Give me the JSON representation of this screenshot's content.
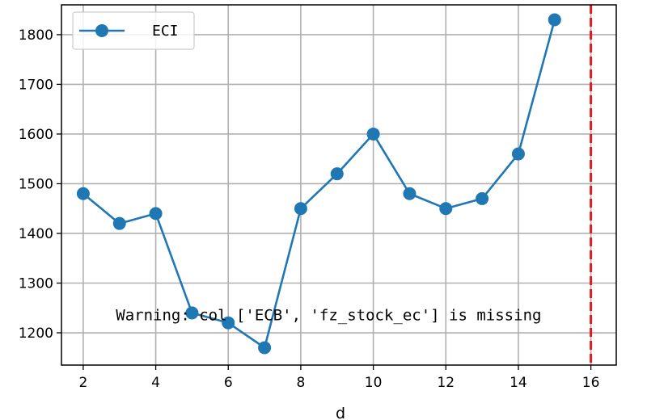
{
  "chart_data": {
    "type": "line",
    "title": "",
    "xlabel": "d",
    "ylabel": "",
    "xlim": [
      1.4,
      16.7
    ],
    "ylim": [
      1135,
      1860
    ],
    "xticks": [
      2,
      4,
      6,
      8,
      10,
      12,
      14,
      16
    ],
    "yticks": [
      1200,
      1300,
      1400,
      1500,
      1600,
      1700,
      1800
    ],
    "grid": true,
    "legend": {
      "placement": "top-left"
    },
    "series": [
      {
        "name": "ECI",
        "color": "#1f77b4",
        "marker": "circle",
        "x": [
          2,
          3,
          4,
          5,
          6,
          7,
          8,
          9,
          10,
          11,
          12,
          13,
          14,
          15
        ],
        "y": [
          1480,
          1420,
          1440,
          1240,
          1220,
          1170,
          1450,
          1520,
          1600,
          1480,
          1450,
          1470,
          1560,
          1830
        ]
      }
    ],
    "vline": {
      "x": 16,
      "color": "#e31a1c",
      "style": "dashed"
    },
    "annotations": [
      {
        "text": "Warning: col ['ECB', 'fz_stock_ec'] is missing",
        "x": 2.9,
        "y": 1225
      }
    ]
  }
}
